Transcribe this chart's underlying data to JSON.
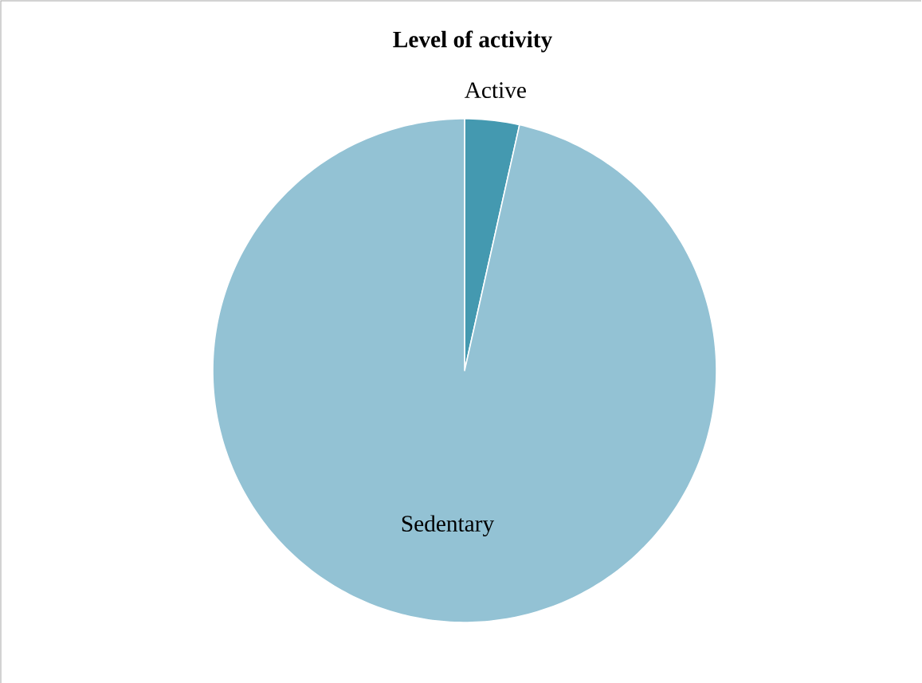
{
  "chart_data": {
    "type": "pie",
    "title": "Level of activity",
    "categories": [
      "Active",
      "Sedentary"
    ],
    "values": [
      3.5,
      96.5
    ],
    "colors": [
      "#4499b0",
      "#93c2d4"
    ]
  }
}
